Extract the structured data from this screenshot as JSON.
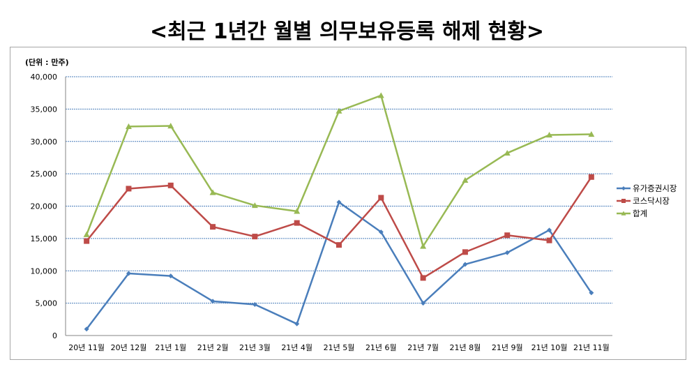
{
  "title": "<최근 1년간 월별 의무보유등록 해제 현황>",
  "chart_data": {
    "type": "line",
    "title": "<최근 1년간 월별 의무보유등록 해제 현황>",
    "unit_label": "(단위 : 만주)",
    "xlabel": "",
    "ylabel": "",
    "ylim": [
      0,
      40000
    ],
    "yticks": [
      0,
      5000,
      10000,
      15000,
      20000,
      25000,
      30000,
      35000,
      40000
    ],
    "ytick_labels": [
      "0",
      "5,000",
      "10,000",
      "15,000",
      "20,000",
      "25,000",
      "30,000",
      "35,000",
      "40,000"
    ],
    "grid": true,
    "legend_position": "right",
    "categories": [
      "20년 11월",
      "20년 12월",
      "21년 1월",
      "21년 2월",
      "21년 3월",
      "21년 4월",
      "21년 5월",
      "21년 6월",
      "21년 7월",
      "21년 8월",
      "21년 9월",
      "21년 10월",
      "21년 11월"
    ],
    "series": [
      {
        "name": "유가증권시장",
        "color": "#4a7ebb",
        "marker": "diamond",
        "values": [
          1000,
          9600,
          9200,
          5300,
          4800,
          1800,
          20600,
          16000,
          5000,
          11000,
          12800,
          16300,
          6600
        ]
      },
      {
        "name": "코스닥시장",
        "color": "#be4b48",
        "marker": "square",
        "values": [
          14600,
          22700,
          23200,
          16800,
          15300,
          17400,
          14000,
          21300,
          8900,
          12900,
          15500,
          14700,
          24500
        ]
      },
      {
        "name": "합계",
        "color": "#98b954",
        "marker": "triangle",
        "values": [
          15600,
          32300,
          32400,
          22100,
          20100,
          19200,
          34700,
          37100,
          13800,
          24000,
          28200,
          31000,
          31100
        ]
      }
    ]
  },
  "colors": {
    "grid": "#4a7ebb",
    "axis": "#868686",
    "frame": "#a6a6a6"
  }
}
